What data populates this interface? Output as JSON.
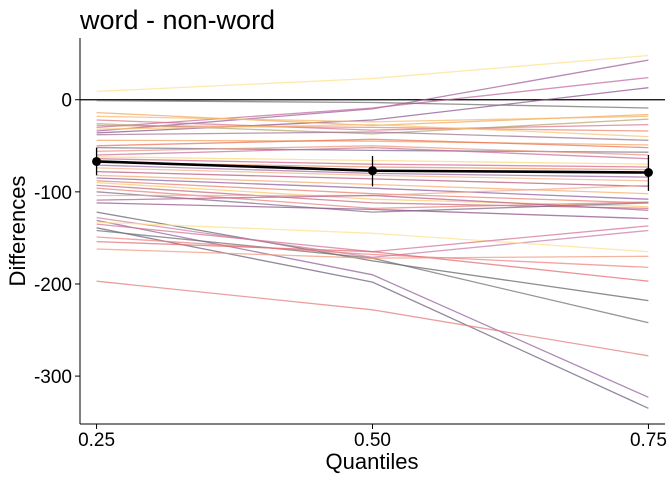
{
  "chart_data": {
    "type": "line",
    "title": "word - non-word",
    "xlabel": "Quantiles",
    "ylabel": "Differences",
    "x": [
      0.25,
      0.5,
      0.75
    ],
    "x_tick_labels": [
      "0.25",
      "0.50",
      "0.75"
    ],
    "xlim": [
      0.235,
      0.765
    ],
    "ylim": [
      -352,
      67
    ],
    "y_ticks": [
      0,
      -100,
      -200,
      -300
    ],
    "y_tick_labels": [
      "0",
      "-100",
      "-200",
      "-300"
    ],
    "reference_line": 0,
    "grid": false,
    "legend": "none",
    "summary_series": {
      "values": [
        -67,
        -77,
        -79
      ],
      "error_low": [
        -82,
        -94,
        -99
      ],
      "error_high": [
        -52,
        -61,
        -60
      ],
      "color": "#000000"
    },
    "participant_lines": [
      {
        "values": [
          9,
          23,
          48
        ],
        "color": "#fde08a"
      },
      {
        "values": [
          -34,
          -10,
          43
        ],
        "color": "#9c5a98"
      },
      {
        "values": [
          -30,
          -9,
          24
        ],
        "color": "#c06aa0"
      },
      {
        "values": [
          -36,
          -22,
          13
        ],
        "color": "#8a4f8e"
      },
      {
        "values": [
          -1,
          -3,
          -9
        ],
        "color": "#6e6e6e"
      },
      {
        "values": [
          -14,
          -28,
          -16
        ],
        "color": "#f2a65a"
      },
      {
        "values": [
          -18,
          -24,
          -18
        ],
        "color": "#f6b86b"
      },
      {
        "values": [
          -22,
          -33,
          -27
        ],
        "color": "#d9708a"
      },
      {
        "values": [
          -26,
          -37,
          -21
        ],
        "color": "#b3a36a"
      },
      {
        "values": [
          -28,
          -30,
          -34
        ],
        "color": "#e8836c"
      },
      {
        "values": [
          -32,
          -27,
          -40
        ],
        "color": "#f8c46f"
      },
      {
        "values": [
          -38,
          -35,
          -44
        ],
        "color": "#a07090"
      },
      {
        "values": [
          -44,
          -45,
          -49
        ],
        "color": "#f4a261"
      },
      {
        "values": [
          -50,
          -43,
          -52
        ],
        "color": "#e76f51"
      },
      {
        "values": [
          -52,
          -55,
          -57
        ],
        "color": "#7a6a8a"
      },
      {
        "values": [
          -56,
          -50,
          -60
        ],
        "color": "#e9967a"
      },
      {
        "values": [
          -60,
          -52,
          -64
        ],
        "color": "#c76b98"
      },
      {
        "values": [
          -62,
          -66,
          -70
        ],
        "color": "#f9d977"
      },
      {
        "values": [
          -64,
          -70,
          -73
        ],
        "color": "#d4658a"
      },
      {
        "values": [
          -68,
          -73,
          -76
        ],
        "color": "#ef8a62"
      },
      {
        "values": [
          -71,
          -80,
          -84
        ],
        "color": "#9e6aa6"
      },
      {
        "values": [
          -74,
          -82,
          -88
        ],
        "color": "#f4b183"
      },
      {
        "values": [
          -78,
          -86,
          -94
        ],
        "color": "#b6557a"
      },
      {
        "values": [
          -82,
          -92,
          -102
        ],
        "color": "#f6a96b"
      },
      {
        "values": [
          -85,
          -96,
          -108
        ],
        "color": "#8b5a9f"
      },
      {
        "values": [
          -88,
          -102,
          -112
        ],
        "color": "#e87e6e"
      },
      {
        "values": [
          -90,
          -108,
          -116
        ],
        "color": "#fbc96a"
      },
      {
        "values": [
          -93,
          -112,
          -118
        ],
        "color": "#c2677e"
      },
      {
        "values": [
          -96,
          -118,
          -111
        ],
        "color": "#ea7f7a"
      },
      {
        "values": [
          -100,
          -122,
          -112
        ],
        "color": "#7c6b86"
      },
      {
        "values": [
          -104,
          -104,
          -93
        ],
        "color": "#f3a58c"
      },
      {
        "values": [
          -109,
          -104,
          -120
        ],
        "color": "#b55d91"
      },
      {
        "values": [
          -112,
          -119,
          -129
        ],
        "color": "#8e4f88"
      },
      {
        "values": [
          -122,
          -175,
          -218
        ],
        "color": "#5f5f5f"
      },
      {
        "values": [
          -128,
          -171,
          -142
        ],
        "color": "#c878a8"
      },
      {
        "values": [
          -131,
          -190,
          -323
        ],
        "color": "#8d5d98"
      },
      {
        "values": [
          -133,
          -145,
          -165
        ],
        "color": "#fde08a"
      },
      {
        "values": [
          -135,
          -165,
          -137
        ],
        "color": "#d27092"
      },
      {
        "values": [
          -139,
          -198,
          -335
        ],
        "color": "#6a5a7a"
      },
      {
        "values": [
          -142,
          -172,
          -242
        ],
        "color": "#6e6e6e"
      },
      {
        "values": [
          -149,
          -168,
          -182
        ],
        "color": "#f08080"
      },
      {
        "values": [
          -154,
          -165,
          -197
        ],
        "color": "#e06a70"
      },
      {
        "values": [
          -162,
          -172,
          -170
        ],
        "color": "#f0977a"
      },
      {
        "values": [
          -197,
          -228,
          -278
        ],
        "color": "#e37a7a"
      }
    ]
  }
}
